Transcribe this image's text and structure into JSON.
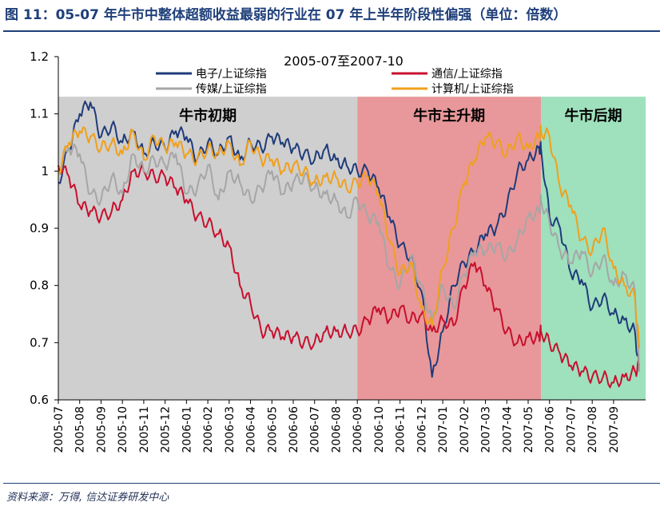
{
  "header": {
    "title": "图 11：05-07 年牛市中整体超额收益最弱的行业在 07 年上半年阶段性偏强（单位：倍数）"
  },
  "footer": {
    "source": "资料来源：万得, 信达证券研发中心"
  },
  "colors": {
    "electronics": "#1f3b7a",
    "telecom": "#c8102e",
    "media": "#a6a6a6",
    "computer": "#f0a01c",
    "early": "#cfcfcf",
    "main": "#e8989a",
    "late": "#9fe0bd"
  },
  "chart_data": {
    "type": "line",
    "title": "2005-07至2007-10",
    "xlabel": "",
    "ylabel": "",
    "ylim": [
      0.6,
      1.2
    ],
    "yticks": [
      "0.6",
      "0.7",
      "0.8",
      "0.9",
      "1",
      "1.1",
      "1.2"
    ],
    "yticks_values": [
      0.6,
      0.7,
      0.8,
      0.9,
      1.0,
      1.1,
      1.2
    ],
    "categories": [
      "2005-07",
      "2005-08",
      "2005-09",
      "2005-10",
      "2005-11",
      "2005-12",
      "2006-01",
      "2006-02",
      "2006-03",
      "2006-04",
      "2006-05",
      "2006-06",
      "2006-07",
      "2006-08",
      "2006-09",
      "2006-10",
      "2006-11",
      "2006-12",
      "2007-01",
      "2007-02",
      "2007-03",
      "2007-04",
      "2007-05",
      "2007-06",
      "2007-07",
      "2007-08",
      "2007-09"
    ],
    "x_index_end": 27.2,
    "regions": [
      {
        "label": "牛市初期",
        "start": 0,
        "end": 14.0,
        "color": "#cfcfcf"
      },
      {
        "label": "牛市主升期",
        "start": 14.0,
        "end": 22.6,
        "color": "#e8989a"
      },
      {
        "label": "牛市后期",
        "start": 22.6,
        "end": 27.5,
        "color": "#9fe0bd"
      }
    ],
    "series": [
      {
        "name": "电子/上证综指",
        "color": "#1f3b7a",
        "x": [
          0,
          0.5,
          1,
          1.5,
          2,
          2.5,
          3,
          3.5,
          4,
          4.5,
          5,
          5.5,
          6,
          6.5,
          7,
          7.5,
          8,
          8.5,
          9,
          9.5,
          10,
          10.5,
          11,
          11.5,
          12,
          12.5,
          13,
          13.5,
          14,
          14.5,
          15,
          15.5,
          16,
          16.5,
          17,
          17.5,
          18,
          18.5,
          19,
          19.5,
          20,
          20.5,
          21,
          21.5,
          22,
          22.5,
          22.6,
          23,
          23.5,
          24,
          24.5,
          25,
          25.5,
          26,
          26.5,
          27,
          27.2
        ],
        "values": [
          0.98,
          1.04,
          1.1,
          1.12,
          1.06,
          1.08,
          1.05,
          1.07,
          1.03,
          1.05,
          1.04,
          1.07,
          1.06,
          1.02,
          1.05,
          1.03,
          1.06,
          1.02,
          1.05,
          1.04,
          1.06,
          1.05,
          1.04,
          1.03,
          1.02,
          1.04,
          1.02,
          1.01,
          1.0,
          1.0,
          0.97,
          0.92,
          0.87,
          0.85,
          0.79,
          0.64,
          0.72,
          0.8,
          0.84,
          0.86,
          0.89,
          0.9,
          0.94,
          1.0,
          1.02,
          1.04,
          1.04,
          0.92,
          0.9,
          0.82,
          0.81,
          0.76,
          0.78,
          0.75,
          0.74,
          0.72,
          0.65
        ]
      },
      {
        "name": "通信/上证综指",
        "color": "#c8102e",
        "x": [
          0,
          0.5,
          1,
          1.5,
          2,
          2.5,
          3,
          3.5,
          4,
          4.5,
          5,
          5.5,
          6,
          6.5,
          7,
          7.5,
          8,
          8.5,
          9,
          9.5,
          10,
          10.5,
          11,
          11.5,
          12,
          12.5,
          13,
          13.5,
          14,
          14.5,
          15,
          15.5,
          16,
          16.5,
          17,
          17.5,
          18,
          18.5,
          19,
          19.5,
          20,
          20.5,
          21,
          21.5,
          22,
          22.5,
          22.6,
          23,
          23.5,
          24,
          24.5,
          25,
          25.5,
          26,
          26.5,
          27,
          27.2
        ],
        "values": [
          1.01,
          0.99,
          0.94,
          0.93,
          0.92,
          0.93,
          0.95,
          1.0,
          1.0,
          0.99,
          0.99,
          0.97,
          0.95,
          0.92,
          0.91,
          0.89,
          0.87,
          0.8,
          0.77,
          0.72,
          0.72,
          0.71,
          0.71,
          0.7,
          0.7,
          0.72,
          0.72,
          0.72,
          0.72,
          0.74,
          0.76,
          0.74,
          0.76,
          0.74,
          0.75,
          0.72,
          0.74,
          0.73,
          0.8,
          0.84,
          0.8,
          0.76,
          0.72,
          0.7,
          0.71,
          0.71,
          0.72,
          0.7,
          0.68,
          0.66,
          0.65,
          0.64,
          0.64,
          0.63,
          0.64,
          0.65,
          0.66
        ]
      },
      {
        "name": "传媒/上证综指",
        "color": "#a6a6a6",
        "x": [
          0,
          0.5,
          1,
          1.5,
          2,
          2.5,
          3,
          3.5,
          4,
          4.5,
          5,
          5.5,
          6,
          6.5,
          7,
          7.5,
          8,
          8.5,
          9,
          9.5,
          10,
          10.5,
          11,
          11.5,
          12,
          12.5,
          13,
          13.5,
          14,
          14.5,
          15,
          15.5,
          16,
          16.5,
          17,
          17.5,
          18,
          18.5,
          19,
          19.5,
          20,
          20.5,
          21,
          21.5,
          22,
          22.5,
          22.6,
          23,
          23.5,
          24,
          24.5,
          25,
          25.5,
          26,
          26.5,
          27,
          27.2
        ],
        "values": [
          1.0,
          1.04,
          1.03,
          0.96,
          0.95,
          0.99,
          0.96,
          1.03,
          1.0,
          1.02,
          1.01,
          1.03,
          0.96,
          0.97,
          1.01,
          0.95,
          1.0,
          0.98,
          0.95,
          0.97,
          1.0,
          0.96,
          0.98,
          0.99,
          0.97,
          0.96,
          0.95,
          0.92,
          0.95,
          0.92,
          0.91,
          0.83,
          0.8,
          0.85,
          0.8,
          0.74,
          0.8,
          0.76,
          0.82,
          0.86,
          0.86,
          0.87,
          0.85,
          0.88,
          0.92,
          0.93,
          0.95,
          0.91,
          0.86,
          0.84,
          0.86,
          0.82,
          0.85,
          0.8,
          0.82,
          0.79,
          0.65
        ]
      },
      {
        "name": "计算机/上证综指",
        "color": "#f0a01c",
        "x": [
          0,
          0.5,
          1,
          1.5,
          2,
          2.5,
          3,
          3.5,
          4,
          4.5,
          5,
          5.5,
          6,
          6.5,
          7,
          7.5,
          8,
          8.5,
          9,
          9.5,
          10,
          10.5,
          11,
          11.5,
          12,
          12.5,
          13,
          13.5,
          14,
          14.5,
          15,
          15.5,
          16,
          16.5,
          17,
          17.5,
          18,
          18.5,
          19,
          19.5,
          20,
          20.5,
          21,
          21.5,
          22,
          22.5,
          22.6,
          23,
          23.5,
          24,
          24.5,
          25,
          25.5,
          26,
          26.5,
          27,
          27.2
        ],
        "values": [
          1.0,
          1.05,
          1.07,
          1.06,
          1.04,
          1.05,
          1.03,
          1.07,
          1.02,
          1.06,
          1.04,
          1.05,
          1.03,
          1.02,
          1.04,
          1.03,
          1.05,
          1.01,
          1.05,
          1.02,
          1.02,
          1.0,
          1.01,
          1.0,
          0.98,
          0.99,
          0.99,
          0.97,
          0.98,
          0.99,
          0.96,
          0.88,
          0.82,
          0.84,
          0.76,
          0.73,
          0.83,
          0.9,
          0.98,
          1.02,
          1.06,
          1.05,
          1.03,
          1.06,
          1.04,
          1.06,
          1.07,
          1.06,
          0.97,
          0.94,
          0.88,
          0.86,
          0.9,
          0.83,
          0.8,
          0.78,
          0.69
        ]
      }
    ]
  }
}
